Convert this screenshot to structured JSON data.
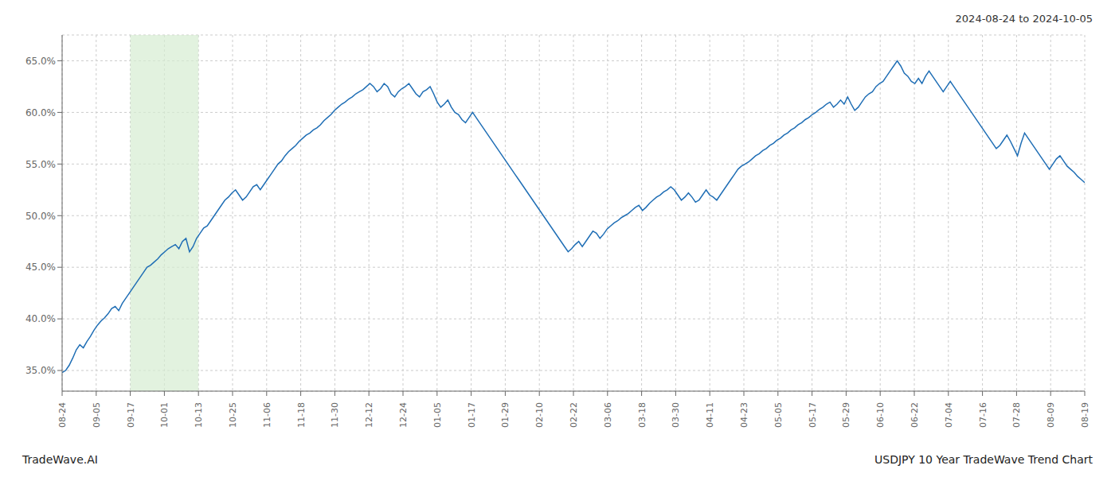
{
  "chart_data": {
    "type": "line",
    "title": "USDJPY 10 Year TradeWave Trend Chart",
    "subtitle": "2024-08-24 to 2024-10-05",
    "annotations": [
      "TradeWave.AI"
    ],
    "color": "#1f6eb5",
    "grid": true,
    "xlim": [
      0,
      289
    ],
    "xticks": [
      {
        "value": 0,
        "label": "08-24"
      },
      {
        "value": 9.633333333333333,
        "label": "09-05"
      },
      {
        "value": 19.266666666666666,
        "label": "09-17"
      },
      {
        "value": 28.9,
        "label": "10-01"
      },
      {
        "value": 38.53333333333333,
        "label": "10-13"
      },
      {
        "value": 48.166666666666664,
        "label": "10-25"
      },
      {
        "value": 57.8,
        "label": "11-06"
      },
      {
        "value": 67.43333333333334,
        "label": "11-18"
      },
      {
        "value": 77.06666666666666,
        "label": "11-30"
      },
      {
        "value": 86.7,
        "label": "12-12"
      },
      {
        "value": 96.33333333333333,
        "label": "12-24"
      },
      {
        "value": 105.96666666666667,
        "label": "01-05"
      },
      {
        "value": 115.6,
        "label": "01-17"
      },
      {
        "value": 125.23333333333333,
        "label": "01-29"
      },
      {
        "value": 134.86666666666667,
        "label": "02-10"
      },
      {
        "value": 144.5,
        "label": "02-22"
      },
      {
        "value": 154.13333333333333,
        "label": "03-06"
      },
      {
        "value": 163.76666666666668,
        "label": "03-18"
      },
      {
        "value": 173.4,
        "label": "03-30"
      },
      {
        "value": 183.03333333333333,
        "label": "04-11"
      },
      {
        "value": 192.66666666666666,
        "label": "04-23"
      },
      {
        "value": 202.3,
        "label": "05-05"
      },
      {
        "value": 211.93333333333334,
        "label": "05-17"
      },
      {
        "value": 221.56666666666666,
        "label": "05-29"
      },
      {
        "value": 231.2,
        "label": "06-10"
      },
      {
        "value": 240.83333333333334,
        "label": "06-22"
      },
      {
        "value": 250.46666666666667,
        "label": "07-04"
      },
      {
        "value": 260.1,
        "label": "07-16"
      },
      {
        "value": 269.73333333333335,
        "label": "07-28"
      },
      {
        "value": 279.3666666666667,
        "label": "08-09"
      },
      {
        "value": 289,
        "label": "08-19"
      }
    ],
    "ylim": [
      33.0,
      67.5
    ],
    "yticks": [
      {
        "value": 35.0,
        "label": "35.0%"
      },
      {
        "value": 40.0,
        "label": "40.0%"
      },
      {
        "value": 45.0,
        "label": "45.0%"
      },
      {
        "value": 50.0,
        "label": "50.0%"
      },
      {
        "value": 55.0,
        "label": "55.0%"
      },
      {
        "value": 60.0,
        "label": "60.0%"
      },
      {
        "value": 65.0,
        "label": "65.0%"
      }
    ],
    "shade": {
      "x": [
        19.266666666666666,
        38.53333333333333
      ],
      "color": "#d6ecd2"
    },
    "x": [
      0,
      1,
      2,
      3,
      4,
      5,
      6,
      7,
      8,
      9,
      10,
      11,
      12,
      13,
      14,
      15,
      16,
      17,
      18,
      19,
      20,
      21,
      22,
      23,
      24,
      25,
      26,
      27,
      28,
      29,
      30,
      31,
      32,
      33,
      34,
      35,
      36,
      37,
      38,
      39,
      40,
      41,
      42,
      43,
      44,
      45,
      46,
      47,
      48,
      49,
      50,
      51,
      52,
      53,
      54,
      55,
      56,
      57,
      58,
      59,
      60,
      61,
      62,
      63,
      64,
      65,
      66,
      67,
      68,
      69,
      70,
      71,
      72,
      73,
      74,
      75,
      76,
      77,
      78,
      79,
      80,
      81,
      82,
      83,
      84,
      85,
      86,
      87,
      88,
      89,
      90,
      91,
      92,
      93,
      94,
      95,
      96,
      97,
      98,
      99,
      100,
      101,
      102,
      103,
      104,
      105,
      106,
      107,
      108,
      109,
      110,
      111,
      112,
      113,
      114,
      115,
      116,
      117,
      118,
      119,
      120,
      121,
      122,
      123,
      124,
      125,
      126,
      127,
      128,
      129,
      130,
      131,
      132,
      133,
      134,
      135,
      136,
      137,
      138,
      139,
      140,
      141,
      142,
      143,
      144,
      145,
      146,
      147,
      148,
      149,
      150,
      151,
      152,
      153,
      154,
      155,
      156,
      157,
      158,
      159,
      160,
      161,
      162,
      163,
      164,
      165,
      166,
      167,
      168,
      169,
      170,
      171,
      172,
      173,
      174,
      175,
      176,
      177,
      178,
      179,
      180,
      181,
      182,
      183,
      184,
      185,
      186,
      187,
      188,
      189,
      190,
      191,
      192,
      193,
      194,
      195,
      196,
      197,
      198,
      199,
      200,
      201,
      202,
      203,
      204,
      205,
      206,
      207,
      208,
      209,
      210,
      211,
      212,
      213,
      214,
      215,
      216,
      217,
      218,
      219,
      220,
      221,
      222,
      223,
      224,
      225,
      226,
      227,
      228,
      229,
      230,
      231,
      232,
      233,
      234,
      235,
      236,
      237,
      238,
      239,
      240,
      241,
      242,
      243,
      244,
      245,
      246,
      247,
      248,
      249,
      250,
      251,
      252,
      253,
      254,
      255,
      256,
      257,
      258,
      259,
      260,
      261,
      262,
      263,
      264,
      265,
      266,
      267,
      268,
      269,
      270,
      271,
      272,
      273,
      274,
      275,
      276,
      277,
      278,
      279,
      280,
      281,
      282,
      283,
      284,
      285,
      286,
      287,
      288,
      289
    ],
    "values": [
      34.8,
      35.0,
      35.5,
      36.2,
      37.0,
      37.5,
      37.2,
      37.8,
      38.3,
      38.9,
      39.4,
      39.8,
      40.1,
      40.5,
      41.0,
      41.2,
      40.8,
      41.5,
      42.0,
      42.5,
      43.0,
      43.5,
      44.0,
      44.5,
      45.0,
      45.2,
      45.5,
      45.8,
      46.2,
      46.5,
      46.8,
      47.0,
      47.2,
      46.8,
      47.5,
      47.8,
      46.5,
      47.0,
      47.8,
      48.3,
      48.8,
      49.0,
      49.5,
      50.0,
      50.5,
      51.0,
      51.5,
      51.8,
      52.2,
      52.5,
      52.0,
      51.5,
      51.8,
      52.3,
      52.8,
      53.0,
      52.5,
      53.0,
      53.5,
      54.0,
      54.5,
      55.0,
      55.3,
      55.8,
      56.2,
      56.5,
      56.8,
      57.2,
      57.5,
      57.8,
      58.0,
      58.3,
      58.5,
      58.8,
      59.2,
      59.5,
      59.8,
      60.2,
      60.5,
      60.8,
      61.0,
      61.3,
      61.5,
      61.8,
      62.0,
      62.2,
      62.5,
      62.8,
      62.5,
      62.0,
      62.3,
      62.8,
      62.5,
      61.8,
      61.5,
      62.0,
      62.3,
      62.5,
      62.8,
      62.3,
      61.8,
      61.5,
      62.0,
      62.2,
      62.5,
      61.8,
      61.0,
      60.5,
      60.8,
      61.2,
      60.5,
      60.0,
      59.8,
      59.3,
      59.0,
      59.5,
      60.0,
      59.5,
      59.0,
      58.5,
      58.0,
      57.5,
      57.0,
      56.5,
      56.0,
      55.5,
      55.0,
      54.5,
      54.0,
      53.5,
      53.0,
      52.5,
      52.0,
      51.5,
      51.0,
      50.5,
      50.0,
      49.5,
      49.0,
      48.5,
      48.0,
      47.5,
      47.0,
      46.5,
      46.8,
      47.2,
      47.5,
      47.0,
      47.5,
      48.0,
      48.5,
      48.3,
      47.8,
      48.2,
      48.7,
      49.0,
      49.3,
      49.5,
      49.8,
      50.0,
      50.2,
      50.5,
      50.8,
      51.0,
      50.5,
      50.8,
      51.2,
      51.5,
      51.8,
      52.0,
      52.3,
      52.5,
      52.8,
      52.5,
      52.0,
      51.5,
      51.8,
      52.2,
      51.8,
      51.3,
      51.5,
      52.0,
      52.5,
      52.0,
      51.8,
      51.5,
      52.0,
      52.5,
      53.0,
      53.5,
      54.0,
      54.5,
      54.8,
      55.0,
      55.2,
      55.5,
      55.8,
      56.0,
      56.3,
      56.5,
      56.8,
      57.0,
      57.3,
      57.5,
      57.8,
      58.0,
      58.3,
      58.5,
      58.8,
      59.0,
      59.3,
      59.5,
      59.8,
      60.0,
      60.3,
      60.5,
      60.8,
      61.0,
      60.5,
      60.8,
      61.2,
      60.8,
      61.5,
      60.8,
      60.2,
      60.5,
      61.0,
      61.5,
      61.8,
      62.0,
      62.5,
      62.8,
      63.0,
      63.5,
      64.0,
      64.5,
      65.0,
      64.5,
      63.8,
      63.5,
      63.0,
      62.8,
      63.3,
      62.8,
      63.5,
      64.0,
      63.5,
      63.0,
      62.5,
      62.0,
      62.5,
      63.0,
      62.5,
      62.0,
      61.5,
      61.0,
      60.5,
      60.0,
      59.5,
      59.0,
      58.5,
      58.0,
      57.5,
      57.0,
      56.5,
      56.8,
      57.3,
      57.8,
      57.2,
      56.5,
      55.8,
      57.0,
      58.0,
      57.5,
      57.0,
      56.5,
      56.0,
      55.5,
      55.0,
      54.5,
      55.0,
      55.5,
      55.8,
      55.3,
      54.8,
      54.5,
      54.2,
      53.8,
      53.5,
      53.2
    ]
  }
}
